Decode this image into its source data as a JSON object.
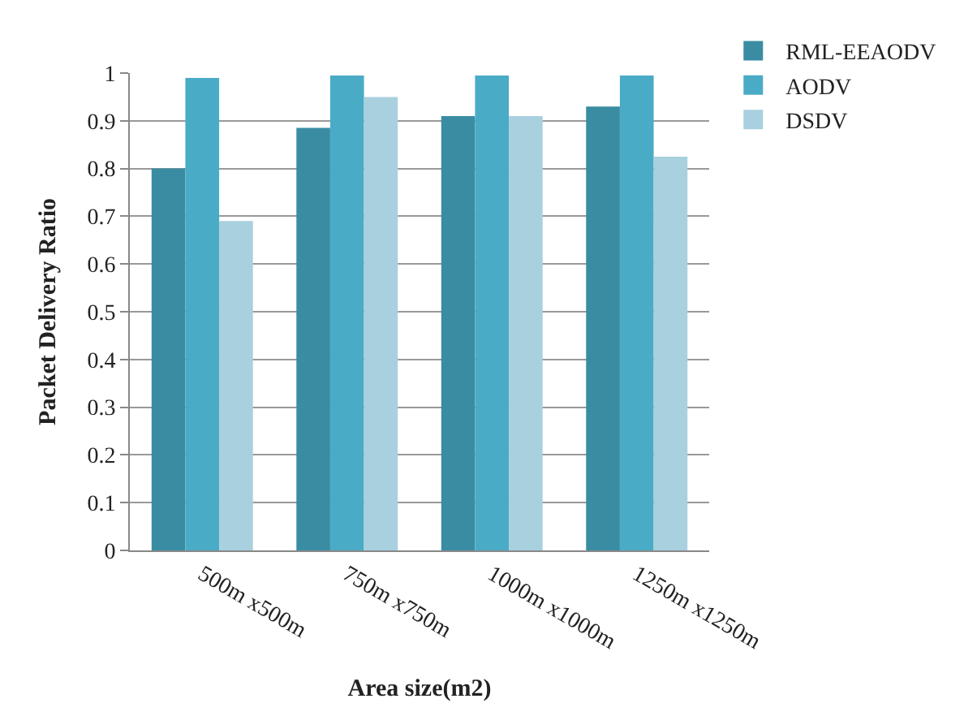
{
  "chart_data": {
    "type": "bar",
    "xlabel": "Area size(m2)",
    "ylabel": "Packet Delivery Ratio",
    "categories": [
      "500m x500m",
      "750m x750m",
      "1000m x1000m",
      "1250m x1250m"
    ],
    "series": [
      {
        "name": "RML-EEAODV",
        "color": "#3a8ca3",
        "values": [
          0.8,
          0.885,
          0.91,
          0.93
        ]
      },
      {
        "name": "AODV",
        "color": "#4aabc6",
        "values": [
          0.99,
          0.995,
          0.995,
          0.995
        ]
      },
      {
        "name": "DSDV",
        "color": "#a9d0de",
        "values": [
          0.69,
          0.95,
          0.91,
          0.825
        ]
      }
    ],
    "ylim": [
      0,
      1
    ],
    "yticks": [
      0,
      0.1,
      0.2,
      0.3,
      0.4,
      0.5,
      0.6,
      0.7,
      0.8,
      0.9,
      1
    ],
    "grid": "y",
    "legend": "top right"
  }
}
